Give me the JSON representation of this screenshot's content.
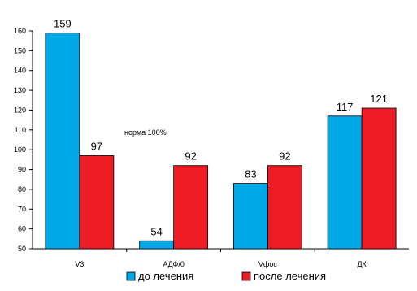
{
  "chart_data": {
    "type": "bar",
    "categories": [
      "V3",
      "АДФ/0",
      "Vфос",
      "ДК"
    ],
    "series": [
      {
        "name": "до лечения",
        "color": "#00a8e6",
        "values": [
          159,
          54,
          83,
          117
        ]
      },
      {
        "name": "после лечения",
        "color": "#ee1c24",
        "values": [
          97,
          92,
          92,
          121
        ]
      }
    ],
    "ylim": [
      50,
      160
    ],
    "yticks": [
      50,
      60,
      70,
      80,
      90,
      100,
      110,
      120,
      130,
      140,
      150,
      160
    ],
    "annotation": "норма 100%",
    "legend_position": "bottom",
    "grid": false
  }
}
